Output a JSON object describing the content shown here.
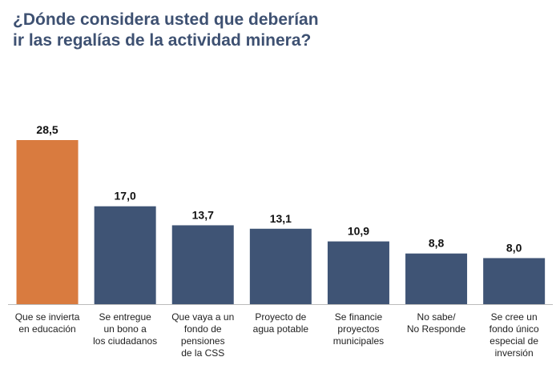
{
  "chart_data": {
    "type": "bar",
    "title": "¿Dónde considera usted que deberían\nir las regalías de la actividad minera?",
    "categories": [
      "Que se invierta\nen educación",
      "Se entregue\nun bono a\nlos ciudadanos",
      "Que vaya a un\nfondo de\npensiones\nde la CSS",
      "Proyecto de\nagua potable",
      "Se financie\nproyectos\nmunicipales",
      "No sabe/\nNo Responde",
      "Se cree un\nfondo único\nespecial de\ninversión"
    ],
    "values": [
      28.5,
      17.0,
      13.7,
      13.1,
      10.9,
      8.8,
      8.0
    ],
    "value_labels": [
      "28,5",
      "17,0",
      "13,7",
      "13,1",
      "10,9",
      "8,8",
      "8,0"
    ],
    "colors": [
      "#d97b3f",
      "#3f5475",
      "#3f5475",
      "#3f5475",
      "#3f5475",
      "#3f5475",
      "#3f5475"
    ]
  }
}
